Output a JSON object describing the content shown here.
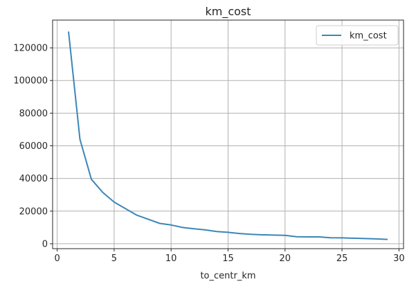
{
  "chart_data": {
    "type": "line",
    "title": "km_cost",
    "xlabel": "to_centr_km",
    "ylabel": "",
    "xlim": [
      -0.4,
      30.4
    ],
    "ylim": [
      -3000,
      137000
    ],
    "xticks": [
      0,
      5,
      10,
      15,
      20,
      25,
      30
    ],
    "yticks": [
      0,
      20000,
      40000,
      60000,
      80000,
      100000,
      120000
    ],
    "grid": true,
    "legend_position": "top-right",
    "series": [
      {
        "name": "km_cost",
        "color": "#3a86b8",
        "x": [
          1,
          2,
          3,
          4,
          5,
          6,
          7,
          8,
          9,
          10,
          11,
          12,
          13,
          14,
          15,
          16,
          17,
          18,
          19,
          20,
          21,
          22,
          23,
          24,
          25,
          26,
          27,
          28,
          29
        ],
        "values": [
          130000,
          64000,
          39500,
          31500,
          25500,
          21500,
          17500,
          15000,
          12500,
          11500,
          10000,
          9200,
          8500,
          7500,
          7000,
          6300,
          5800,
          5500,
          5300,
          5200,
          4300,
          4200,
          4200,
          3700,
          3600,
          3400,
          3200,
          3000,
          2700
        ]
      }
    ]
  }
}
